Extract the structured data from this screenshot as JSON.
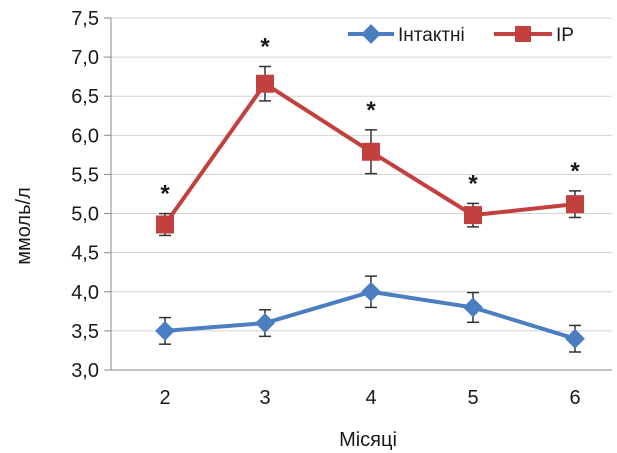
{
  "chart_data": {
    "type": "line",
    "title": "",
    "xlabel": "Місяці",
    "ylabel": "ммоль/л",
    "x": [
      2,
      3,
      4,
      5,
      6
    ],
    "ylim": [
      3.0,
      7.5
    ],
    "yticks": [
      "3,0",
      "3,5",
      "4,0",
      "4,5",
      "5,0",
      "5,5",
      "6,0",
      "6,5",
      "7,0",
      "7,5"
    ],
    "grid": "horizontal",
    "legend_position": "top-right",
    "series": [
      {
        "name": "Інтактні",
        "color": "#4a7ec0",
        "marker": "diamond",
        "values": [
          3.5,
          3.6,
          4.0,
          3.8,
          3.4
        ],
        "errors": [
          0.17,
          0.17,
          0.2,
          0.19,
          0.17
        ]
      },
      {
        "name": "ІР",
        "color": "#c2403d",
        "marker": "square",
        "values": [
          4.86,
          6.66,
          5.79,
          4.98,
          5.12
        ],
        "errors": [
          0.14,
          0.22,
          0.28,
          0.15,
          0.17
        ]
      }
    ],
    "annotations": [
      "*",
      "*",
      "*",
      "*",
      "*"
    ]
  }
}
